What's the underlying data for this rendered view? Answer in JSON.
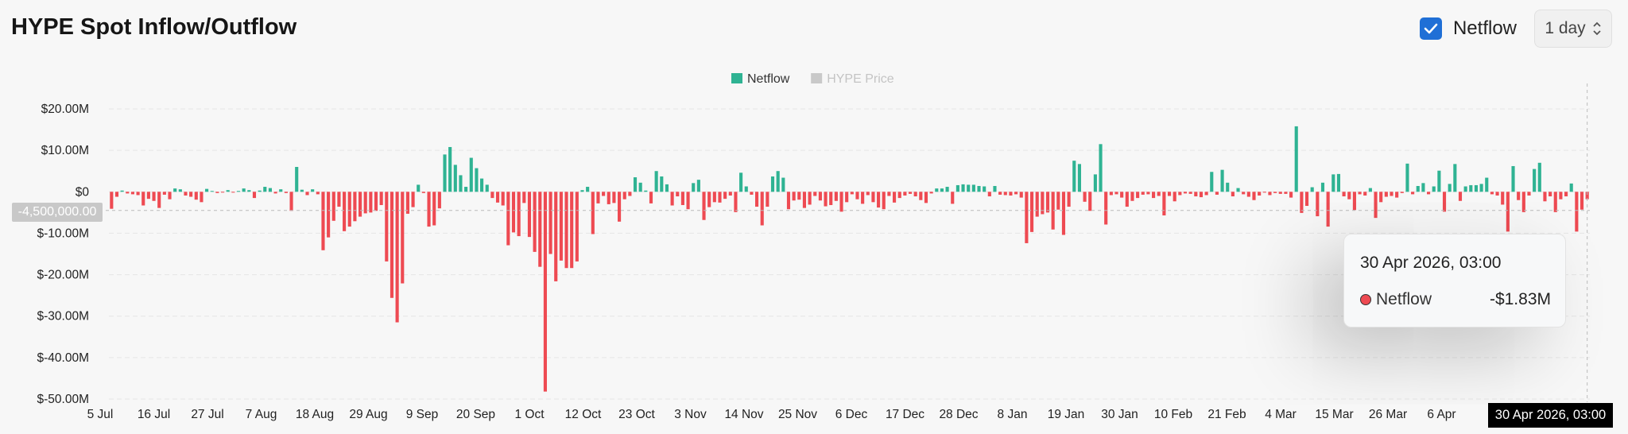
{
  "header": {
    "title": "HYPE Spot Inflow/Outflow",
    "netflow_toggle_label": "Netflow",
    "netflow_checked": true,
    "interval_value": "1 day"
  },
  "tooltip": {
    "date": "30 Apr 2026, 03:00",
    "series": "Netflow",
    "value": "-$1.83M"
  },
  "crosshair": {
    "y_label": "-4,500,000.00",
    "x_label": "30 Apr 2026, 03:00"
  },
  "colors": {
    "positive": "#2fb393",
    "negative": "#ee4a52",
    "legend_inactive": "#c9c9c9"
  },
  "chart_data": {
    "type": "bar",
    "title": "HYPE Spot Inflow/Outflow",
    "legend": [
      {
        "name": "Netflow",
        "color": "#2fb393",
        "active": true
      },
      {
        "name": "HYPE Price",
        "color": "#c9c9c9",
        "active": false
      }
    ],
    "ylim": [
      -50,
      20
    ],
    "y_ticks": [
      {
        "value": 20,
        "label": "$20.00M"
      },
      {
        "value": 10,
        "label": "$10.00M"
      },
      {
        "value": 0,
        "label": "$0"
      },
      {
        "value": -10,
        "label": "$-10.00M"
      },
      {
        "value": -20,
        "label": "$-20.00M"
      },
      {
        "value": -30,
        "label": "$-30.00M"
      },
      {
        "value": -40,
        "label": "$-40.00M"
      },
      {
        "value": -50,
        "label": "$-50.00M"
      }
    ],
    "x_ticks": [
      "5 Jul",
      "16 Jul",
      "27 Jul",
      "7 Aug",
      "18 Aug",
      "29 Aug",
      "9 Sep",
      "20 Sep",
      "1 Oct",
      "12 Oct",
      "23 Oct",
      "3 Nov",
      "14 Nov",
      "25 Nov",
      "6 Dec",
      "17 Dec",
      "28 Dec",
      "8 Jan",
      "19 Jan",
      "30 Jan",
      "10 Feb",
      "21 Feb",
      "4 Mar",
      "15 Mar",
      "26 Mar",
      "6 Apr"
    ],
    "series": [
      {
        "name": "Netflow",
        "unit": "$M",
        "values": [
          -4.1,
          -1.2,
          0.3,
          -0.4,
          -0.6,
          -0.8,
          -3.3,
          -1.7,
          -2.2,
          -3.9,
          -0.7,
          -1.8,
          0.8,
          0.6,
          -0.9,
          -1.2,
          -1.9,
          -2.5,
          0.7,
          0.2,
          -0.3,
          -0.1,
          0.4,
          -0.2,
          0.2,
          0.8,
          0.4,
          -1.5,
          0.3,
          1.2,
          0.9,
          -0.4,
          0.6,
          -0.3,
          -4.6,
          6.0,
          0.5,
          -0.8,
          0.6,
          -0.6,
          -14.1,
          -11.0,
          -7.0,
          -3.6,
          -9.5,
          -8.4,
          -7.1,
          -6.0,
          -5.2,
          -5.0,
          -4.6,
          -3.2,
          -16.8,
          -25.6,
          -31.5,
          -22.1,
          -5.3,
          -3.7,
          1.7,
          -0.3,
          -8.4,
          -8.1,
          -4.0,
          9.0,
          10.8,
          6.5,
          4.0,
          1.2,
          8.2,
          5.7,
          3.2,
          1.7,
          -1.5,
          -2.6,
          -3.3,
          -12.9,
          -9.8,
          -10.7,
          -2.7,
          -10.9,
          -14.5,
          -18.1,
          -48.2,
          -15.0,
          -21.6,
          -16.6,
          -18.4,
          -18.4,
          -16.8,
          0.4,
          1.2,
          -10.2,
          -2.8,
          -1.0,
          -3.0,
          -2.7,
          -7.2,
          -1.8,
          -1.0,
          3.5,
          2.2,
          0.3,
          -2.8,
          5.0,
          3.7,
          1.8,
          -3.3,
          -1.1,
          -3.2,
          -4.2,
          2.1,
          2.9,
          -6.8,
          -3.7,
          -2.5,
          -2.6,
          -1.7,
          -0.9,
          -4.9,
          4.6,
          1.3,
          -0.7,
          -3.6,
          -8.1,
          -3.6,
          3.7,
          5.0,
          3.4,
          -4.2,
          -2.1,
          -1.9,
          -3.9,
          -3.1,
          -1.0,
          -2.1,
          -3.5,
          -3.2,
          -2.2,
          -4.8,
          -2.5,
          -0.6,
          -1.8,
          -2.9,
          -0.8,
          -2.5,
          -3.8,
          -4.2,
          -1.0,
          -2.6,
          -1.5,
          -0.9,
          -0.5,
          -1.1,
          -2.0,
          -2.7,
          -0.4,
          0.8,
          0.8,
          1.2,
          -2.9,
          1.6,
          1.8,
          1.7,
          1.7,
          1.4,
          1.3,
          -1.1,
          1.4,
          -0.7,
          -0.8,
          -0.9,
          -0.6,
          -1.4,
          -12.4,
          -9.7,
          -6.0,
          -5.4,
          -5.0,
          -9.1,
          -4.3,
          -10.4,
          -3.6,
          7.5,
          6.7,
          -2.4,
          -4.6,
          4.2,
          11.5,
          -7.9,
          -0.8,
          -0.6,
          -1.4,
          -3.6,
          -2.2,
          -1.5,
          -0.7,
          -0.6,
          -1.5,
          -1.0,
          -5.7,
          -1.0,
          -2.3,
          -0.8,
          -0.4,
          -0.5,
          -1.1,
          -1.3,
          -0.8,
          4.8,
          -0.7,
          5.3,
          2.2,
          -1.1,
          0.9,
          -0.6,
          -1.2,
          -2.0,
          -0.9,
          -0.2,
          -0.8,
          -0.3,
          -0.5,
          -0.5,
          -1.4,
          15.8,
          -5.1,
          -3.4,
          1.1,
          -5.9,
          2.2,
          -8.4,
          4.2,
          4.3,
          -1.1,
          -1.8,
          -4.4,
          -0.6,
          -0.9,
          0.9,
          -6.3,
          -2.5,
          -1.2,
          -1.0,
          -1.4,
          -0.3,
          6.8,
          -0.6,
          1.4,
          2.1,
          -0.6,
          1.3,
          5.1,
          -4.8,
          1.9,
          6.7,
          -2.2,
          1.3,
          1.6,
          1.6,
          1.9,
          3.4,
          -0.6,
          -0.9,
          -3.1,
          -9.6,
          6.2,
          -2.0,
          -4.9,
          -0.9,
          5.5,
          7.0,
          -2.3,
          -1.1,
          -4.9,
          -1.8,
          -1.1,
          2.0,
          -9.6,
          -4.3,
          -1.8
        ]
      }
    ],
    "highlighted_point": {
      "x": "30 Apr 2026, 03:00",
      "value": -1.83
    }
  }
}
